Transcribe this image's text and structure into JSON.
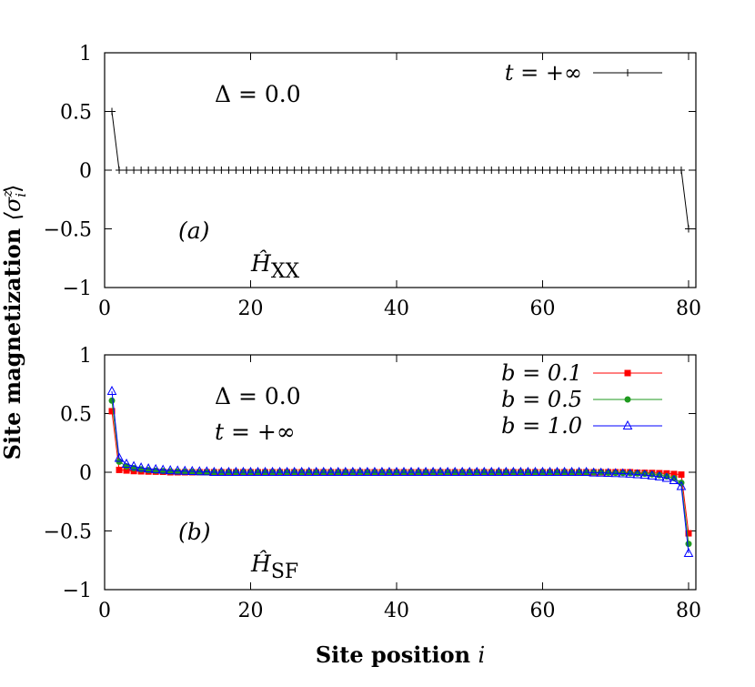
{
  "chart_data": [
    {
      "type": "line",
      "panel": "(a)",
      "annotations": {
        "delta": "Δ = 0.0",
        "panel_label": "(a)",
        "hamiltonian": "Ĥ",
        "hamiltonian_sub": "XX"
      },
      "xlim": [
        0,
        81
      ],
      "ylim": [
        -1,
        1
      ],
      "xticks": [
        "0",
        "20",
        "40",
        "60",
        "80"
      ],
      "yticks": [
        "1",
        "0.5",
        "0",
        "−0.5",
        "−1"
      ],
      "legend_position": "top-right",
      "series": [
        {
          "name": "t = +∞",
          "color": "#000000",
          "marker": "plus",
          "x_start": 1,
          "x_end": 80,
          "values": [
            0.5,
            0,
            0,
            0,
            0,
            0,
            0,
            0,
            0,
            0,
            0,
            0,
            0,
            0,
            0,
            0,
            0,
            0,
            0,
            0,
            0,
            0,
            0,
            0,
            0,
            0,
            0,
            0,
            0,
            0,
            0,
            0,
            0,
            0,
            0,
            0,
            0,
            0,
            0,
            0,
            0,
            0,
            0,
            0,
            0,
            0,
            0,
            0,
            0,
            0,
            0,
            0,
            0,
            0,
            0,
            0,
            0,
            0,
            0,
            0,
            0,
            0,
            0,
            0,
            0,
            0,
            0,
            0,
            0,
            0,
            0,
            0,
            0,
            0,
            0,
            0,
            0,
            0,
            0,
            -0.5
          ]
        }
      ]
    },
    {
      "type": "line",
      "panel": "(b)",
      "annotations": {
        "delta": "Δ = 0.0",
        "time": "t = +∞",
        "panel_label": "(b)",
        "hamiltonian": "Ĥ",
        "hamiltonian_sub": "SF"
      },
      "xlim": [
        0,
        81
      ],
      "ylim": [
        -1,
        1
      ],
      "xticks": [
        "0",
        "20",
        "40",
        "60",
        "80"
      ],
      "yticks": [
        "1",
        "0.5",
        "0",
        "−0.5",
        "−1"
      ],
      "legend_position": "top-right",
      "series": [
        {
          "name": "b = 0.1",
          "color": "#ff0000",
          "marker": "square",
          "head": [
            0.52,
            0.02,
            0.015,
            0.01,
            0.008,
            0.006,
            0.005,
            0.004
          ],
          "tail": [
            -0.004,
            -0.005,
            -0.006,
            -0.008,
            -0.01,
            -0.015,
            -0.02,
            -0.52
          ]
        },
        {
          "name": "b = 0.5",
          "color": "#1f9a1f",
          "marker": "circle",
          "head": [
            0.61,
            0.09,
            0.05,
            0.035,
            0.025,
            0.018,
            0.013,
            0.01,
            0.008,
            0.006,
            0.005,
            0.004
          ],
          "tail": [
            -0.004,
            -0.005,
            -0.006,
            -0.008,
            -0.01,
            -0.013,
            -0.018,
            -0.025,
            -0.035,
            -0.05,
            -0.09,
            -0.61
          ]
        },
        {
          "name": "b = 1.0",
          "color": "#0000ff",
          "marker": "triangle",
          "head": [
            0.69,
            0.12,
            0.07,
            0.05,
            0.038,
            0.03,
            0.024,
            0.019,
            0.015,
            0.012,
            0.01,
            0.008,
            0.006,
            0.005
          ],
          "tail": [
            -0.005,
            -0.006,
            -0.008,
            -0.01,
            -0.012,
            -0.015,
            -0.019,
            -0.024,
            -0.03,
            -0.038,
            -0.05,
            -0.07,
            -0.12,
            -0.69
          ]
        }
      ]
    }
  ],
  "labels": {
    "ylabel": "Site magnetization",
    "ylabel_math": "⟨σ",
    "ylabel_sup": "z",
    "ylabel_sub": "i",
    "ylabel_close": "⟩",
    "xlabel": "Site position",
    "xlabel_var": "i"
  }
}
